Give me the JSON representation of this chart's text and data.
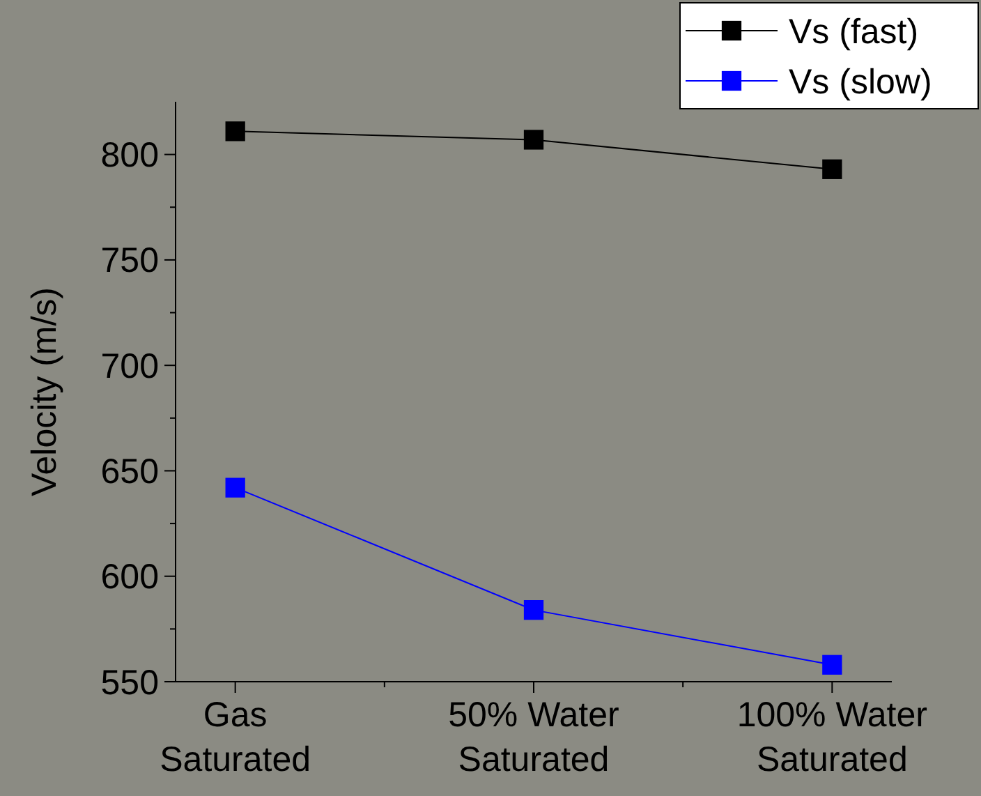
{
  "chart_data": {
    "type": "line",
    "ylabel": "Velocity (m/s)",
    "categories": [
      "Gas\nSaturated",
      "50% Water\nSaturated",
      "100% Water\nSaturated"
    ],
    "series": [
      {
        "name": "Vs (fast)",
        "color": "#000000",
        "values": [
          811,
          807,
          793
        ]
      },
      {
        "name": "Vs (slow)",
        "color": "#0000ff",
        "values": [
          642,
          584,
          558
        ]
      }
    ],
    "ylim": [
      550,
      825
    ],
    "yticks": [
      550,
      600,
      650,
      700,
      750,
      800
    ],
    "marker": "square",
    "legend": "top right",
    "grid": false
  }
}
